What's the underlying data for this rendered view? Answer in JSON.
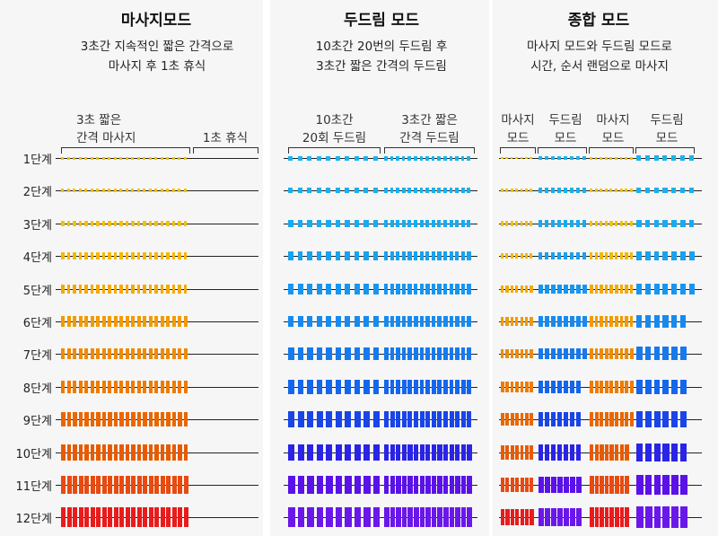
{
  "panels": [
    {
      "title": "마사지모드",
      "desc_lines": [
        "3초간 지속적인 짧은 간격으로",
        "마사지 후 1초 휴식"
      ],
      "sub_labels": {
        "a": [
          "3초 짧은",
          "간격 마사지"
        ],
        "b": [
          "1초 휴식"
        ]
      }
    },
    {
      "title": "두드림 모드",
      "desc_lines": [
        "10초간 20번의 두드림 후",
        "3초간 짧은 간격의 두드림"
      ],
      "sub_labels": {
        "a": [
          "10초간",
          "20회 두드림"
        ],
        "b": [
          "3초간 짧은",
          "간격 두드림"
        ]
      }
    },
    {
      "title": "종합 모드",
      "desc_lines": [
        "마사지 모드와 두드림 모드로",
        "시간, 순서 랜덤으로 마사지"
      ],
      "sub_labels": {
        "a": [
          "마사지",
          "모드"
        ],
        "b": [
          "두드림",
          "모드"
        ],
        "c": [
          "마사지",
          "모드"
        ],
        "d": [
          "두드림",
          "모드"
        ]
      }
    }
  ],
  "levels": [
    "1단계",
    "2단계",
    "3단계",
    "4단계",
    "5단계",
    "6단계",
    "7단계",
    "8단계",
    "9단계",
    "10단계",
    "11단계",
    "12단계"
  ],
  "massage_colors": [
    "#f5c100",
    "#f5c100",
    "#f5c100",
    "#f5b800",
    "#f4a900",
    "#f39a00",
    "#f08a00",
    "#ee7b00",
    "#ea6600",
    "#e85a00",
    "#e84a10",
    "#e81c1c"
  ],
  "tapping_colors": [
    "#1ab4ee",
    "#1ab0ee",
    "#19aaef",
    "#18a2ef",
    "#1896ef",
    "#178aef",
    "#1679ee",
    "#1566ec",
    "#1a45e8",
    "#2a24e6",
    "#5a12e8",
    "#6a18ea"
  ]
}
